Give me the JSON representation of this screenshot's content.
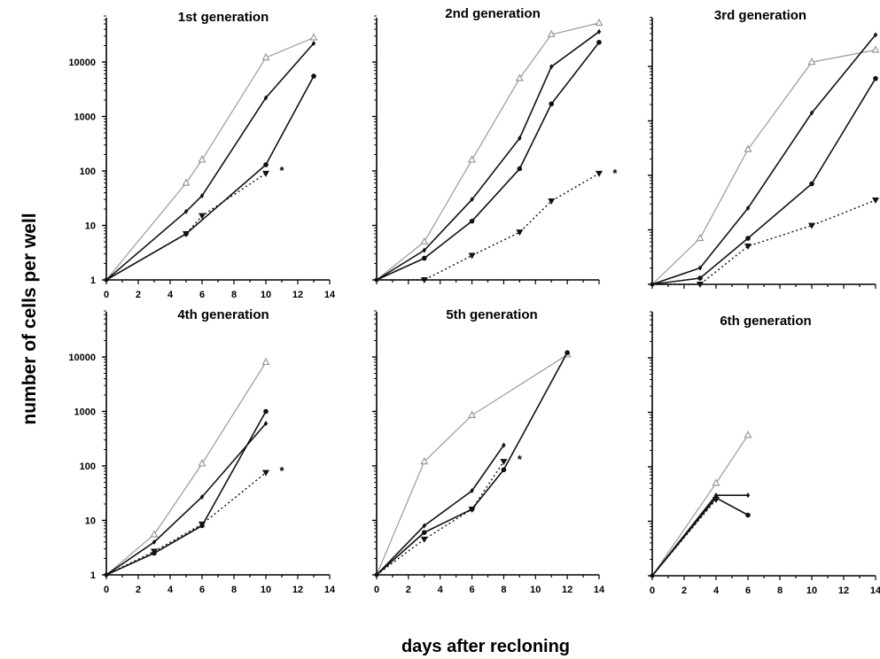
{
  "figure": {
    "ylabel": "number of cells per well",
    "xlabel": "days after recloning"
  },
  "colors": {
    "grey_series": "#9a9a9a",
    "black_series": "#111111",
    "axis": "#000000"
  },
  "chart_data": [
    {
      "type": "line",
      "title": "1st generation",
      "xlabel": "",
      "ylabel": "",
      "xticks": [
        0,
        2,
        4,
        6,
        8,
        10,
        12,
        14
      ],
      "yticks": [
        "1",
        "10",
        "100",
        "1000",
        "10000"
      ],
      "xlim": [
        0,
        14
      ],
      "ylog_decades": [
        0,
        4.7
      ],
      "yscale": "log",
      "series": [
        {
          "marker": "triangle-open",
          "style": "grey",
          "x": [
            0,
            5,
            6,
            10,
            13
          ],
          "y": [
            1,
            60,
            160,
            12000,
            28000
          ]
        },
        {
          "marker": "diamond",
          "style": "solid",
          "x": [
            0,
            5,
            6,
            10,
            13
          ],
          "y": [
            1,
            18,
            35,
            2200,
            22000
          ]
        },
        {
          "marker": "circle",
          "style": "solid",
          "x": [
            0,
            5,
            10,
            13
          ],
          "y": [
            1,
            7,
            130,
            5500
          ]
        },
        {
          "marker": "triangle-down",
          "style": "dotted",
          "x": [
            0,
            5,
            6,
            10
          ],
          "y": [
            1,
            7,
            15,
            90
          ]
        }
      ],
      "annotations": [
        {
          "text": "*",
          "x": 11,
          "y": 100
        }
      ]
    },
    {
      "type": "line",
      "title": "2nd generation",
      "xlabel": "",
      "ylabel": "",
      "xticks": [],
      "yticks": [],
      "xlim": [
        0,
        14
      ],
      "ylog_decades": [
        0,
        4.7
      ],
      "yscale": "log",
      "series": [
        {
          "marker": "triangle-open",
          "style": "grey",
          "x": [
            0,
            3,
            6,
            9,
            11,
            14
          ],
          "y": [
            1,
            5,
            160,
            5000,
            32000,
            52000
          ]
        },
        {
          "marker": "diamond",
          "style": "solid",
          "x": [
            0,
            3,
            6,
            9,
            11,
            14
          ],
          "y": [
            1,
            3.5,
            30,
            400,
            8200,
            36000
          ]
        },
        {
          "marker": "circle",
          "style": "solid",
          "x": [
            0,
            3,
            6,
            9,
            11,
            14
          ],
          "y": [
            1,
            2.5,
            12,
            110,
            1700,
            23000
          ]
        },
        {
          "marker": "triangle-down",
          "style": "dotted",
          "x": [
            0,
            3,
            6,
            9,
            11,
            14
          ],
          "y": [
            1,
            1,
            2.8,
            7.5,
            28,
            90
          ]
        }
      ],
      "annotations": [
        {
          "text": "*",
          "x": 15,
          "y": 90
        }
      ]
    },
    {
      "type": "line",
      "title": "3rd generation",
      "xlabel": "",
      "ylabel": "",
      "xticks": [],
      "yticks": [],
      "xlim": [
        0,
        14
      ],
      "ylog_decades": [
        0,
        4.7
      ],
      "yscale": "log",
      "series": [
        {
          "marker": "triangle-open",
          "style": "grey",
          "x": [
            0,
            3,
            6,
            10,
            14
          ],
          "y": [
            1,
            7,
            300,
            12000,
            20000
          ]
        },
        {
          "marker": "diamond",
          "style": "solid",
          "x": [
            0,
            3,
            6,
            10,
            14
          ],
          "y": [
            1,
            2,
            25,
            1400,
            38000
          ]
        },
        {
          "marker": "circle",
          "style": "solid",
          "x": [
            0,
            3,
            6,
            10,
            14
          ],
          "y": [
            1,
            1.3,
            7,
            70,
            6000
          ]
        },
        {
          "marker": "triangle-down",
          "style": "dotted",
          "x": [
            0,
            3,
            6,
            10,
            14
          ],
          "y": [
            1,
            1,
            5,
            12,
            35
          ]
        }
      ],
      "annotations": []
    },
    {
      "type": "line",
      "title": "4th generation",
      "xlabel": "",
      "ylabel": "",
      "xticks": [
        0,
        2,
        4,
        6,
        8,
        10,
        12,
        14
      ],
      "yticks": [
        "1",
        "10",
        "100",
        "1000",
        "10000"
      ],
      "xlim": [
        0,
        14
      ],
      "ylog_decades": [
        0,
        4.7
      ],
      "yscale": "log",
      "series": [
        {
          "marker": "triangle-open",
          "style": "grey",
          "x": [
            0,
            3,
            6,
            10
          ],
          "y": [
            1,
            5.5,
            110,
            8000
          ]
        },
        {
          "marker": "diamond",
          "style": "solid",
          "x": [
            0,
            3,
            6,
            10
          ],
          "y": [
            1,
            4,
            27,
            600
          ]
        },
        {
          "marker": "circle",
          "style": "solid",
          "x": [
            0,
            3,
            6,
            10
          ],
          "y": [
            1,
            2.5,
            8,
            1000
          ]
        },
        {
          "marker": "triangle-down",
          "style": "dotted",
          "x": [
            0,
            3,
            6,
            10
          ],
          "y": [
            1,
            2.7,
            8.5,
            75
          ]
        }
      ],
      "annotations": [
        {
          "text": "*",
          "x": 11,
          "y": 80
        }
      ]
    },
    {
      "type": "line",
      "title": "5th generation",
      "xlabel": "",
      "ylabel": "",
      "xticks": [
        0,
        2,
        4,
        6,
        8,
        10,
        12,
        14
      ],
      "yticks": [],
      "xlim": [
        0,
        14
      ],
      "ylog_decades": [
        0,
        4.7
      ],
      "yscale": "log",
      "series": [
        {
          "marker": "triangle-open",
          "style": "grey",
          "x": [
            0,
            3,
            6,
            12
          ],
          "y": [
            1,
            120,
            850,
            11000
          ]
        },
        {
          "marker": "diamond",
          "style": "solid",
          "x": [
            0,
            3,
            6,
            8
          ],
          "y": [
            1,
            8,
            35,
            240
          ]
        },
        {
          "marker": "circle",
          "style": "solid",
          "x": [
            0,
            3,
            6,
            8,
            12
          ],
          "y": [
            1,
            6,
            16,
            85,
            12000
          ]
        },
        {
          "marker": "triangle-down",
          "style": "dotted",
          "x": [
            0,
            3,
            6,
            8
          ],
          "y": [
            1,
            4.5,
            16,
            120
          ]
        }
      ],
      "annotations": [
        {
          "text": "*",
          "x": 9,
          "y": 130
        }
      ]
    },
    {
      "type": "line",
      "title": "6th generation",
      "xlabel": "",
      "ylabel": "",
      "xticks": [
        0,
        2,
        4,
        6,
        8,
        10,
        12,
        14
      ],
      "yticks": [],
      "xlim": [
        0,
        14
      ],
      "ylog_decades": [
        0,
        4.7
      ],
      "yscale": "log",
      "series": [
        {
          "marker": "triangle-open",
          "style": "grey",
          "x": [
            0,
            4,
            6
          ],
          "y": [
            1,
            50,
            380
          ]
        },
        {
          "marker": "diamond",
          "style": "solid",
          "x": [
            0,
            4,
            6
          ],
          "y": [
            1,
            30,
            30
          ]
        },
        {
          "marker": "circle",
          "style": "solid",
          "x": [
            0,
            4,
            6
          ],
          "y": [
            1,
            27,
            13
          ]
        },
        {
          "marker": "triangle-down",
          "style": "dotted",
          "x": [
            0,
            4
          ],
          "y": [
            1,
            25
          ]
        }
      ],
      "annotations": []
    }
  ]
}
